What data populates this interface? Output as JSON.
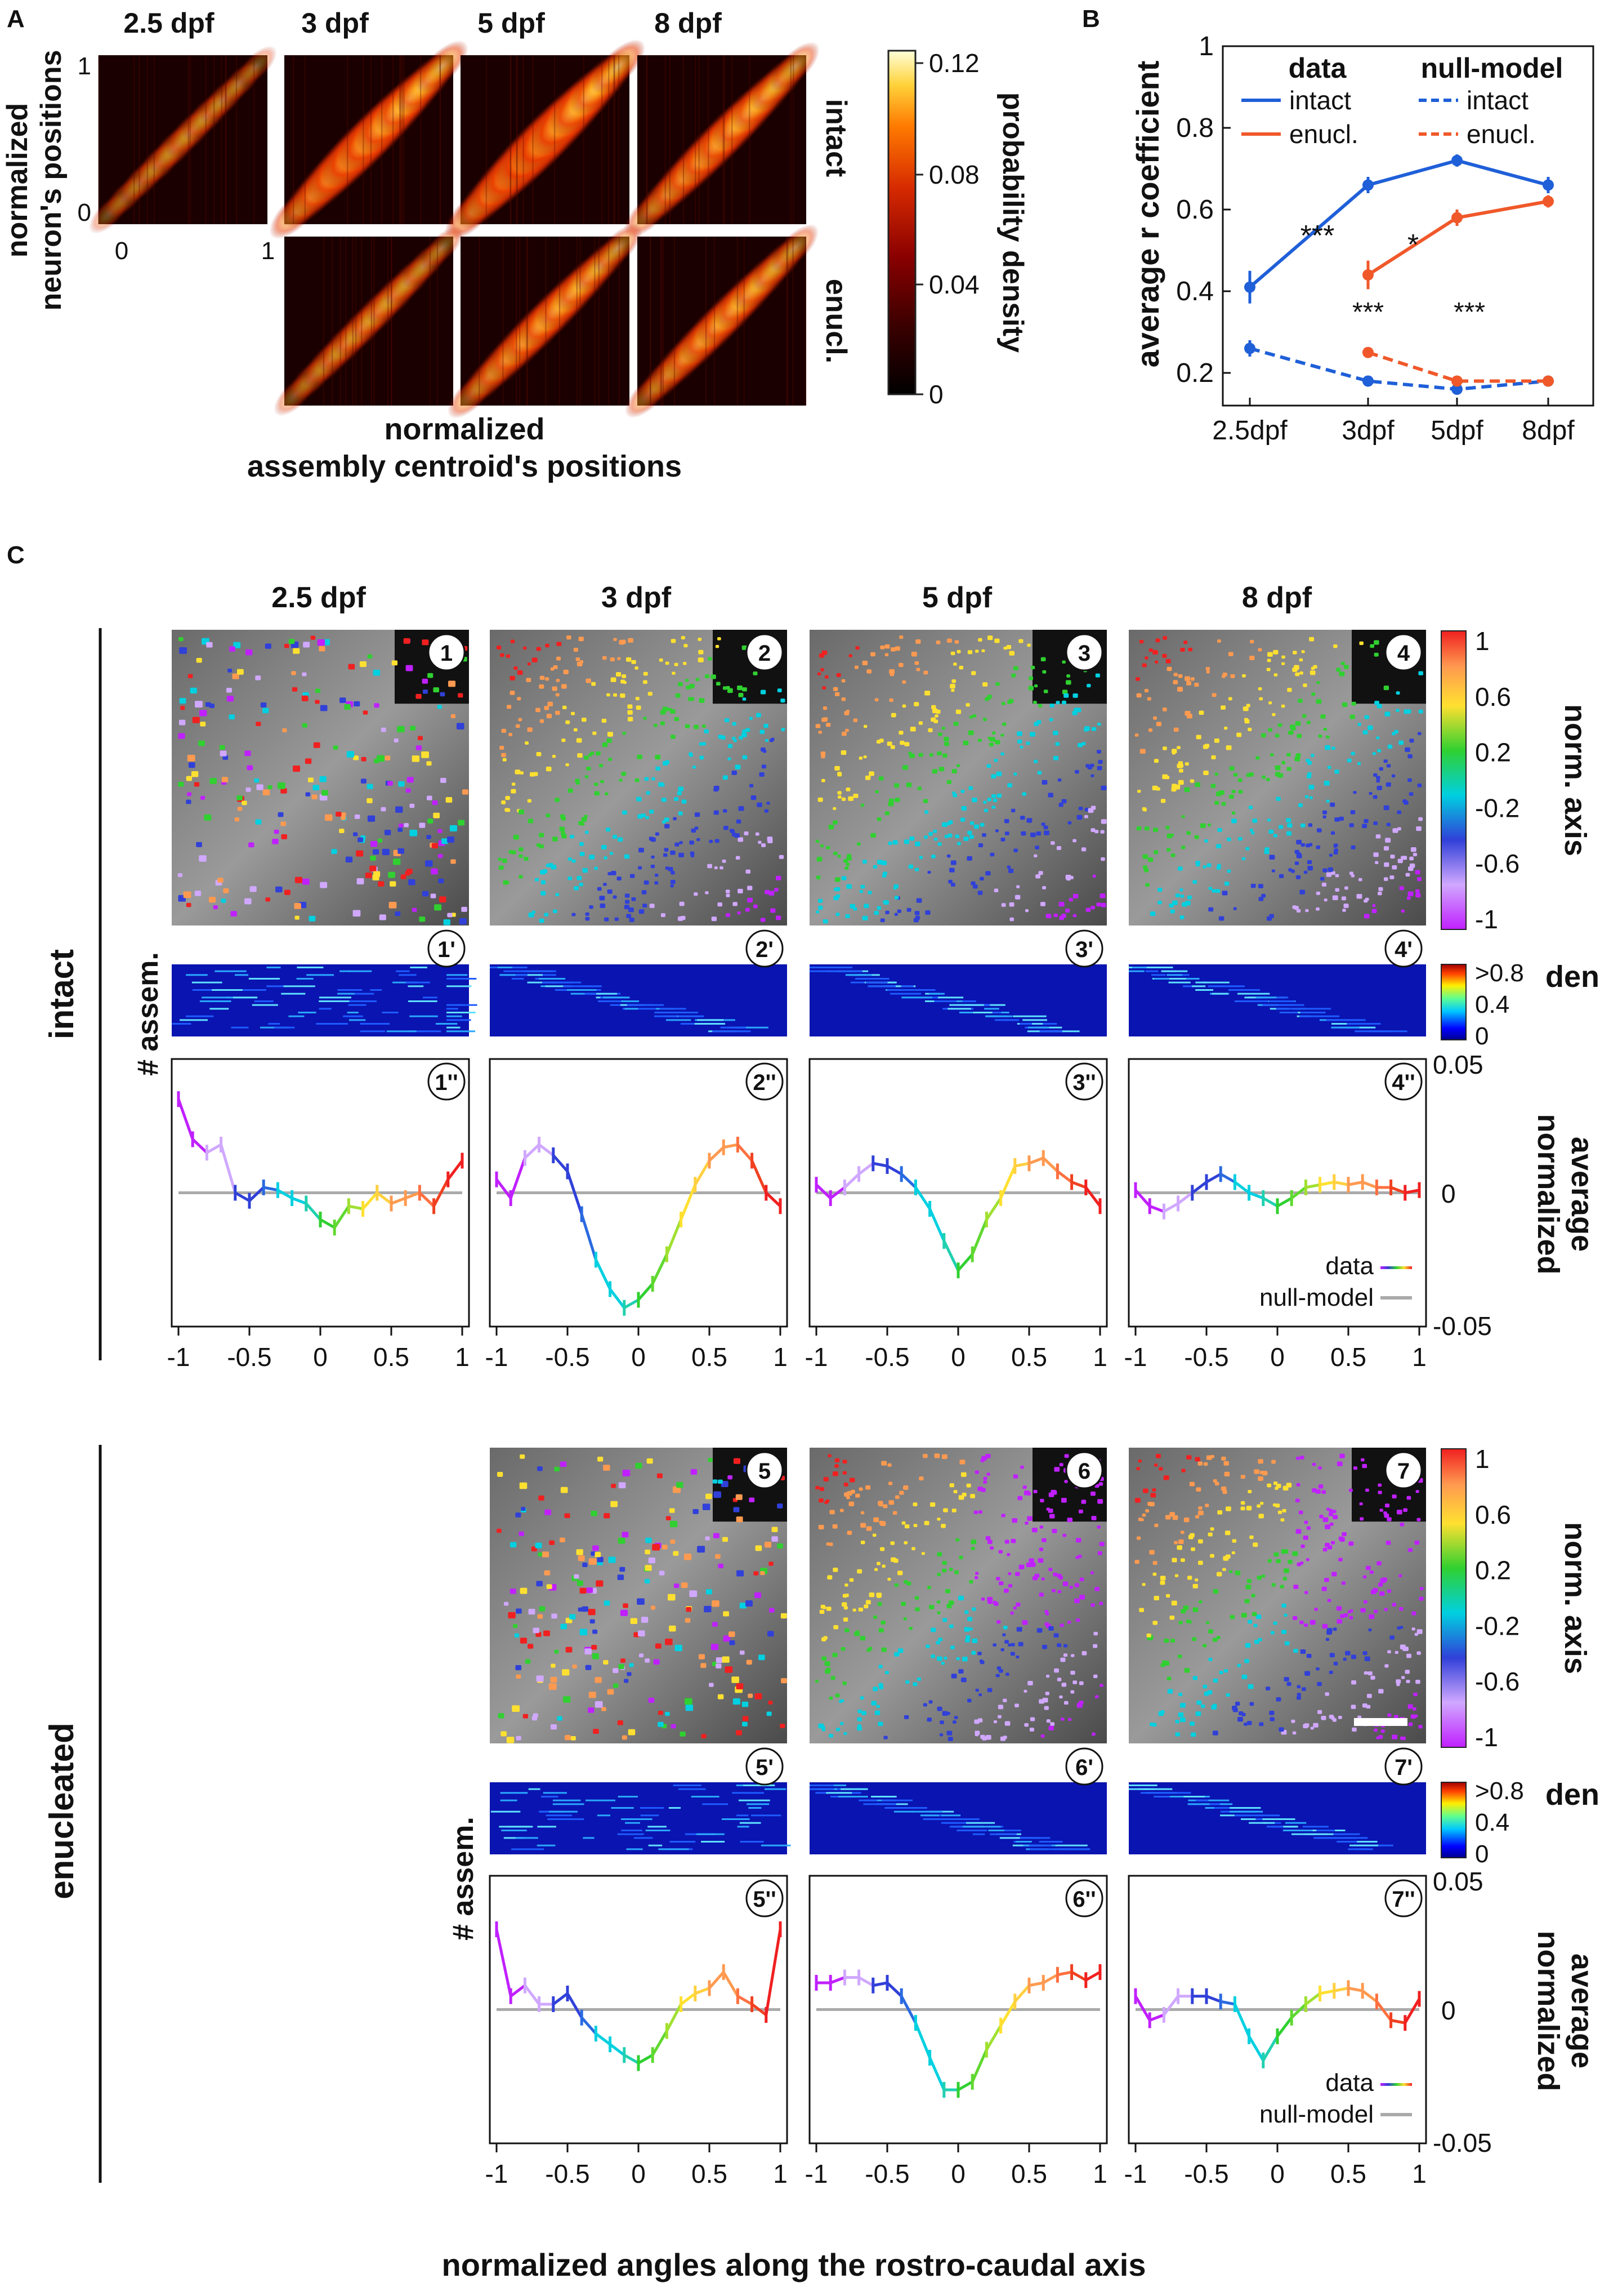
{
  "panel_labels": {
    "a": "A",
    "b": "B",
    "c": "C"
  },
  "panelA": {
    "ages": [
      "2.5 dpf",
      "3 dpf",
      "5 dpf",
      "8 dpf"
    ],
    "row_labels": [
      "intact",
      "enucl."
    ],
    "ylabel_line1": "normalized",
    "ylabel_line2": "neuron's positions",
    "xlabel_line1": "normalized",
    "xlabel_line2": "assembly centroid's positions",
    "ytick_top": "1",
    "ytick_bottom": "0",
    "xtick_left": "0",
    "xtick_right": "1",
    "colorbar_label": "probability density",
    "colorbar_ticks": [
      "0.12",
      "0.08",
      "0.04",
      "0"
    ],
    "colormap": [
      "#000000",
      "#3b0000",
      "#8a0000",
      "#d62a00",
      "#ff7a00",
      "#ffd23a",
      "#ffffd8"
    ],
    "intensities": {
      "intact": [
        0.35,
        0.9,
        1.0,
        0.75
      ],
      "enucl": [
        null,
        0.45,
        0.7,
        0.65
      ]
    }
  },
  "panelB": {
    "ylabel": "average r coefficient",
    "yticks": [
      "1",
      "0.8",
      "0.6",
      "0.4",
      "0.2"
    ],
    "xticks": [
      "2.5dpf",
      "3dpf",
      "5dpf",
      "8dpf"
    ],
    "legend": {
      "data_title": "data",
      "null_title": "null-model",
      "intact": "intact",
      "enucl": "enucl.",
      "null_intact": "intact",
      "null_enucl": "enucl."
    },
    "colors": {
      "intact": "#1f5fd8",
      "enucl": "#f0582a"
    },
    "stars_blue": "***",
    "stars_red": "*",
    "stars_black_1": "***",
    "stars_black_2": "***"
  },
  "chart_data": {
    "type": "line",
    "categories": [
      "2.5dpf",
      "3dpf",
      "5dpf",
      "8dpf"
    ],
    "ylabel": "average r coefficient",
    "ylim": [
      0.12,
      1.0
    ],
    "series": [
      {
        "name": "intact",
        "kind": "data",
        "values": [
          0.41,
          0.66,
          0.72,
          0.66
        ],
        "err": [
          0.04,
          0.02,
          0.015,
          0.02
        ]
      },
      {
        "name": "enucl.",
        "kind": "data",
        "values": [
          null,
          0.44,
          0.58,
          0.62
        ],
        "err": [
          null,
          0.035,
          0.02,
          0.015
        ]
      },
      {
        "name": "intact",
        "kind": "null-model",
        "values": [
          0.26,
          0.18,
          0.16,
          0.18
        ],
        "err": [
          0.02,
          0.01,
          0.01,
          0.01
        ]
      },
      {
        "name": "enucl.",
        "kind": "null-model",
        "values": [
          null,
          0.25,
          0.18,
          0.18
        ],
        "err": [
          null,
          0.01,
          0.01,
          0.01
        ]
      }
    ]
  },
  "panelC": {
    "ages": [
      "2.5 dpf",
      "3 dpf",
      "5 dpf",
      "8 dpf"
    ],
    "group_intact": "intact",
    "group_enucleated": "enucleated",
    "assem_label": "# assem.",
    "dens_label": "dens.",
    "dens_ticks": [
      ">0.8",
      "0.4",
      "0"
    ],
    "norm_axis_label": "norm. axis",
    "norm_axis_ticks": [
      "1",
      "0.6",
      "0.2",
      "-0.2",
      "-0.6",
      "-1"
    ],
    "norm_avg_line1": "normalized",
    "norm_avg_line2": "average",
    "norm_avg_ticks": [
      "0.05",
      "0",
      "-0.05"
    ],
    "xticks": [
      "-1",
      "-0.5",
      "0",
      "0.5",
      "1"
    ],
    "legend_data": "data",
    "legend_null": "null-model",
    "bottom_xlabel": "normalized angles along the rostro-caudal axis",
    "intact_badges": [
      "1",
      "2",
      "3",
      "4"
    ],
    "intact_badges_p": [
      "1'",
      "2'",
      "3'",
      "4'"
    ],
    "intact_badges_pp": [
      "1''",
      "2''",
      "3''",
      "4''"
    ],
    "enuc_badges": [
      "5",
      "6",
      "7"
    ],
    "enuc_badges_p": [
      "5'",
      "6'",
      "7'"
    ],
    "enuc_badges_pp": [
      "5''",
      "6''",
      "7''"
    ],
    "curves": {
      "c1": [
        0.035,
        0.02,
        0.015,
        0.018,
        0.0,
        -0.003,
        0.002,
        0.001,
        -0.002,
        -0.004,
        -0.01,
        -0.013,
        -0.005,
        -0.006,
        0.0,
        -0.004,
        -0.002,
        0.0,
        -0.005,
        0.005,
        0.012
      ],
      "c2": [
        0.005,
        -0.002,
        0.013,
        0.018,
        0.014,
        0.008,
        -0.008,
        -0.025,
        -0.036,
        -0.043,
        -0.04,
        -0.034,
        -0.023,
        -0.01,
        0.003,
        0.012,
        0.017,
        0.018,
        0.012,
        0.0,
        -0.005
      ],
      "c3": [
        0.003,
        -0.002,
        0.002,
        0.007,
        0.011,
        0.01,
        0.007,
        0.002,
        -0.006,
        -0.018,
        -0.029,
        -0.023,
        -0.01,
        -0.002,
        0.01,
        0.011,
        0.013,
        0.008,
        0.004,
        0.002,
        -0.005
      ],
      "c4": [
        0.001,
        -0.005,
        -0.007,
        -0.004,
        0.0,
        0.004,
        0.007,
        0.004,
        0.0,
        -0.002,
        -0.005,
        -0.002,
        0.002,
        0.003,
        0.004,
        0.003,
        0.004,
        0.002,
        0.002,
        0.0,
        0.001
      ],
      "c5": [
        0.03,
        0.005,
        0.009,
        0.002,
        0.002,
        0.006,
        -0.003,
        -0.009,
        -0.013,
        -0.017,
        -0.02,
        -0.017,
        -0.008,
        0.002,
        0.006,
        0.008,
        0.014,
        0.005,
        0.002,
        -0.002,
        0.03
      ],
      "c6": [
        0.01,
        0.01,
        0.012,
        0.012,
        0.009,
        0.01,
        0.005,
        -0.005,
        -0.018,
        -0.03,
        -0.03,
        -0.027,
        -0.015,
        -0.006,
        0.003,
        0.009,
        0.01,
        0.013,
        0.014,
        0.011,
        0.014
      ],
      "c7": [
        0.005,
        -0.004,
        -0.002,
        0.005,
        0.005,
        0.005,
        0.003,
        0.002,
        -0.01,
        -0.019,
        -0.01,
        -0.003,
        0.002,
        0.006,
        0.007,
        0.008,
        0.007,
        0.003,
        -0.004,
        -0.005,
        0.004
      ]
    }
  }
}
